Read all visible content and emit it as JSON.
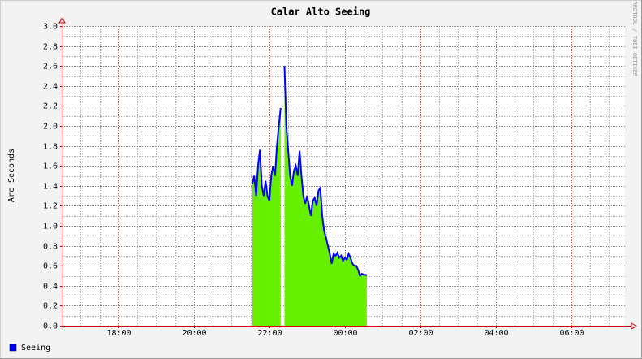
{
  "chart_data": {
    "type": "area",
    "title": "Calar Alto Seeing",
    "ylabel": "Arc Seconds",
    "watermark": "RRDTOOL / TOBI OETIKER",
    "x": [
      21.55,
      21.6,
      21.65,
      21.7,
      21.75,
      21.8,
      21.85,
      21.9,
      21.95,
      22.0,
      22.05,
      22.1,
      22.15,
      22.2,
      22.25,
      22.3,
      22.35,
      22.4,
      22.45,
      22.5,
      22.55,
      22.6,
      22.65,
      22.7,
      22.75,
      22.8,
      22.85,
      22.9,
      22.95,
      23.0,
      23.05,
      23.1,
      23.15,
      23.2,
      23.25,
      23.3,
      23.35,
      23.4,
      23.45,
      23.5,
      23.55,
      23.6,
      23.65,
      23.7,
      23.75,
      23.8,
      23.85,
      23.9,
      23.95,
      24.0,
      24.05,
      24.1,
      24.15,
      24.2,
      24.25,
      24.3,
      24.35,
      24.4,
      24.45,
      24.5,
      24.55,
      24.58
    ],
    "series": [
      {
        "name": "Seeing",
        "color": "#0000ff",
        "fill": "#66f000",
        "values": [
          1.42,
          1.5,
          1.3,
          1.6,
          1.76,
          1.4,
          1.3,
          1.45,
          1.3,
          1.25,
          1.5,
          1.6,
          1.5,
          1.8,
          2.0,
          2.18,
          null,
          2.6,
          2.0,
          1.75,
          1.5,
          1.4,
          1.55,
          1.6,
          1.5,
          1.75,
          1.5,
          1.3,
          1.22,
          1.3,
          1.2,
          1.1,
          1.25,
          1.28,
          1.2,
          1.35,
          1.38,
          1.1,
          0.95,
          0.88,
          0.8,
          0.72,
          0.62,
          0.72,
          0.7,
          0.73,
          0.68,
          0.7,
          0.65,
          0.68,
          0.66,
          0.72,
          0.68,
          0.62,
          0.6,
          0.6,
          0.56,
          0.5,
          0.52,
          0.51,
          0.51,
          0.5
        ]
      }
    ],
    "xlim": [
      16.52,
      31.42
    ],
    "xticks": [
      {
        "value": 18,
        "label": "18:00"
      },
      {
        "value": 20,
        "label": "20:00"
      },
      {
        "value": 22,
        "label": "22:00"
      },
      {
        "value": 24,
        "label": "00:00"
      },
      {
        "value": 26,
        "label": "02:00"
      },
      {
        "value": 28,
        "label": "04:00"
      },
      {
        "value": 30,
        "label": "06:00"
      }
    ],
    "ylim": [
      0,
      3
    ],
    "yticks": [
      {
        "value": 0,
        "label": "0.0"
      },
      0.2,
      0.4,
      0.6,
      0.8,
      {
        "value": 1,
        "label": "1.0"
      },
      1.2,
      1.4,
      1.6,
      1.8,
      {
        "value": 2,
        "label": "2.0"
      },
      2.2,
      2.4,
      2.6,
      2.8,
      {
        "value": 3,
        "label": "3.0"
      }
    ],
    "grid": true,
    "grid_color": "#e06060",
    "minor_grid_color": "#b0b0b0",
    "legend": "bottom-left"
  }
}
